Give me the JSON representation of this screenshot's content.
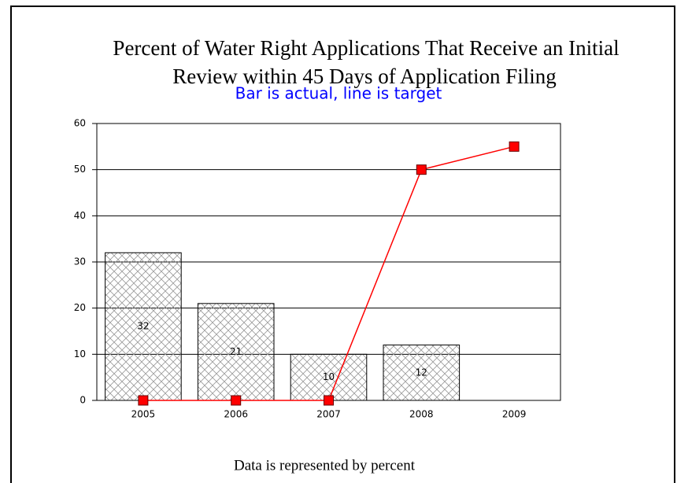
{
  "chart_data": {
    "type": "combo",
    "title": [
      "Percent of Water Right Applications That Receive an Initial",
      "Review within 45 Days of Application Filing"
    ],
    "subtitle": "Bar is actual, line is target",
    "footer": "Data is represented by percent",
    "categories": [
      "2005",
      "2006",
      "2007",
      "2008",
      "2009"
    ],
    "series": [
      {
        "type": "bar",
        "color": "#999999",
        "values": [
          32,
          21,
          10,
          12,
          null
        ]
      },
      {
        "type": "line",
        "color": "#ff0000",
        "values": [
          0,
          0,
          0,
          50,
          55
        ]
      }
    ],
    "ylim": [
      0,
      60
    ],
    "yticks": [
      0,
      10,
      20,
      30,
      40,
      50,
      60
    ],
    "grid": true
  }
}
